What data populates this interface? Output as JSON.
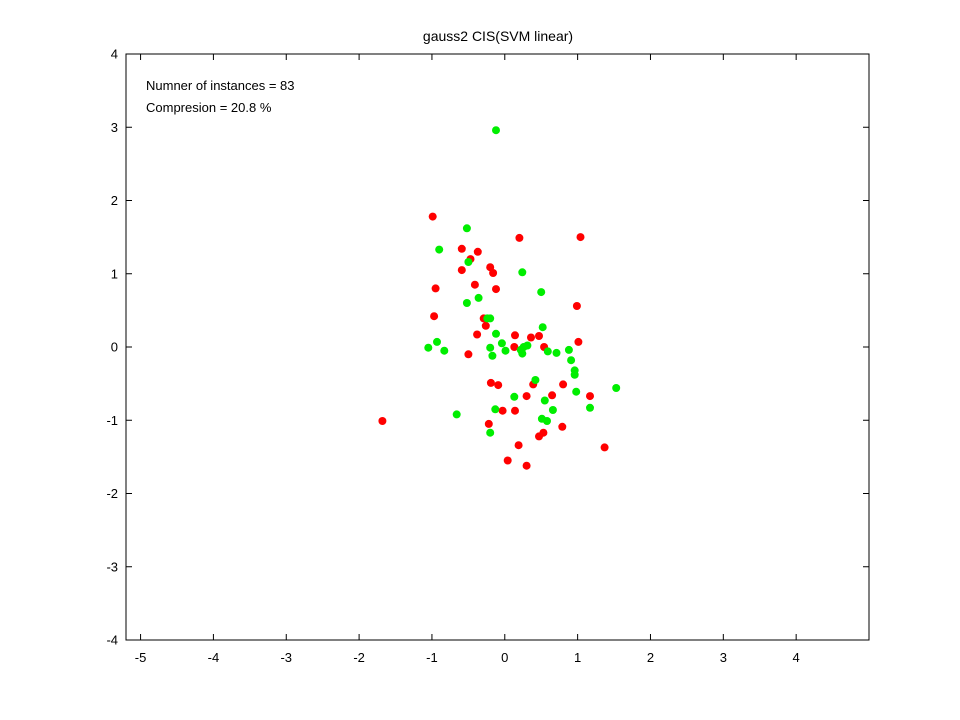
{
  "chart_data": {
    "type": "scatter",
    "title": "gauss2 CIS(SVM linear)",
    "xlabel": "",
    "ylabel": "",
    "xlim": [
      -5.2,
      5.0
    ],
    "ylim": [
      -4,
      4
    ],
    "xticks": [
      -5,
      -4,
      -3,
      -2,
      -1,
      0,
      1,
      2,
      3,
      4
    ],
    "yticks": [
      -4,
      -3,
      -2,
      -1,
      0,
      1,
      2,
      3,
      4
    ],
    "grid": false,
    "annotations": [
      "Numner of instances = 83",
      "Compresion = 20.8 %"
    ],
    "series": [
      {
        "color": "#ff0000",
        "points": [
          [
            -1.68,
            -1.01
          ],
          [
            -0.99,
            1.78
          ],
          [
            -0.95,
            0.8
          ],
          [
            -0.97,
            0.42
          ],
          [
            -0.59,
            1.34
          ],
          [
            -0.59,
            1.05
          ],
          [
            -0.47,
            1.2
          ],
          [
            -0.41,
            0.85
          ],
          [
            -0.37,
            1.3
          ],
          [
            -0.38,
            0.17
          ],
          [
            -0.29,
            0.39
          ],
          [
            -0.26,
            0.29
          ],
          [
            -0.2,
            1.09
          ],
          [
            -0.16,
            1.01
          ],
          [
            -0.12,
            0.79
          ],
          [
            -0.5,
            -0.1
          ],
          [
            -0.19,
            -0.49
          ],
          [
            -0.09,
            -0.52
          ],
          [
            -0.22,
            -1.05
          ],
          [
            -0.03,
            -0.87
          ],
          [
            0.04,
            -1.55
          ],
          [
            0.14,
            -0.87
          ],
          [
            0.19,
            -1.34
          ],
          [
            0.14,
            0.16
          ],
          [
            0.13,
            0.0
          ],
          [
            0.2,
            1.49
          ],
          [
            0.3,
            -0.67
          ],
          [
            0.3,
            -1.62
          ],
          [
            0.36,
            0.13
          ],
          [
            0.39,
            -0.51
          ],
          [
            0.47,
            0.15
          ],
          [
            0.47,
            -1.22
          ],
          [
            0.53,
            -1.17
          ],
          [
            0.54,
            0.0
          ],
          [
            0.65,
            -0.66
          ],
          [
            0.8,
            -0.51
          ],
          [
            0.79,
            -1.09
          ],
          [
            0.99,
            0.56
          ],
          [
            1.01,
            0.07
          ],
          [
            1.04,
            1.5
          ],
          [
            1.17,
            -0.67
          ],
          [
            1.37,
            -1.37
          ]
        ]
      },
      {
        "color": "#00ee00",
        "points": [
          [
            -1.05,
            -0.01
          ],
          [
            -0.93,
            0.07
          ],
          [
            -0.9,
            1.33
          ],
          [
            -0.83,
            -0.05
          ],
          [
            -0.66,
            -0.92
          ],
          [
            -0.52,
            1.62
          ],
          [
            -0.52,
            0.6
          ],
          [
            -0.5,
            1.16
          ],
          [
            -0.36,
            0.67
          ],
          [
            -0.24,
            0.39
          ],
          [
            -0.2,
            0.39
          ],
          [
            -0.2,
            -0.01
          ],
          [
            -0.17,
            -0.12
          ],
          [
            -0.2,
            -1.17
          ],
          [
            -0.12,
            0.18
          ],
          [
            -0.13,
            -0.85
          ],
          [
            -0.12,
            2.96
          ],
          [
            -0.04,
            0.05
          ],
          [
            0.01,
            -0.05
          ],
          [
            0.13,
            -0.68
          ],
          [
            0.22,
            -0.04
          ],
          [
            0.24,
            1.02
          ],
          [
            0.24,
            -0.09
          ],
          [
            0.26,
            0.0
          ],
          [
            0.31,
            0.02
          ],
          [
            0.42,
            -0.45
          ],
          [
            0.5,
            0.75
          ],
          [
            0.52,
            0.27
          ],
          [
            0.51,
            -0.98
          ],
          [
            0.55,
            -0.73
          ],
          [
            0.58,
            -1.01
          ],
          [
            0.59,
            -0.06
          ],
          [
            0.66,
            -0.86
          ],
          [
            0.71,
            -0.08
          ],
          [
            0.88,
            -0.04
          ],
          [
            0.91,
            -0.18
          ],
          [
            0.96,
            -0.32
          ],
          [
            0.96,
            -0.38
          ],
          [
            0.98,
            -0.61
          ],
          [
            1.17,
            -0.83
          ],
          [
            1.53,
            -0.56
          ]
        ]
      }
    ]
  }
}
